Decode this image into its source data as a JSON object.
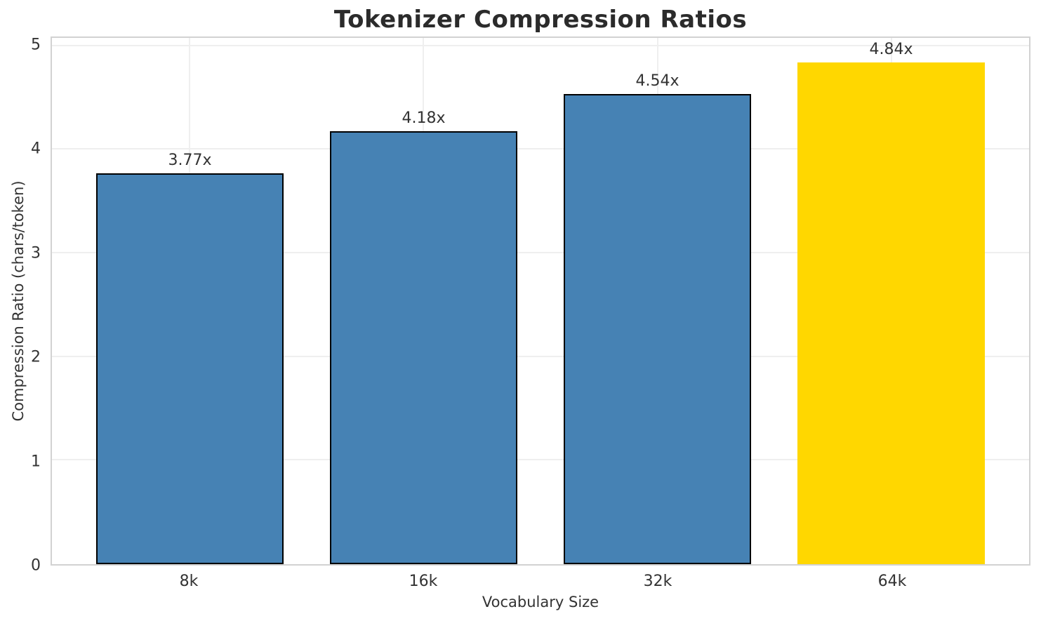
{
  "chart_data": {
    "type": "bar",
    "title": "Tokenizer Compression Ratios",
    "xlabel": "Vocabulary Size",
    "ylabel": "Compression Ratio (chars/token)",
    "categories": [
      "8k",
      "16k",
      "32k",
      "64k"
    ],
    "values": [
      3.77,
      4.18,
      4.54,
      4.84
    ],
    "bar_labels": [
      "3.77x",
      "4.18x",
      "4.54x",
      "4.84x"
    ],
    "yticks": [
      0,
      1,
      2,
      3,
      4,
      5
    ],
    "ylim": [
      0,
      5.08
    ],
    "grid": true,
    "legend": "none",
    "bar_colors": [
      "#4682B4",
      "#4682B4",
      "#4682B4",
      "#FFD700"
    ],
    "bar_edge_colors": [
      "#000000",
      "#000000",
      "#000000",
      "none"
    ],
    "base_bar_color": "#4682B4",
    "highlight_bar_color": "#FFD700",
    "grid_color": "#efefef",
    "spine_color": "#d2d2d2",
    "text_color": "#333333",
    "title_color": "#2b2b2b"
  }
}
